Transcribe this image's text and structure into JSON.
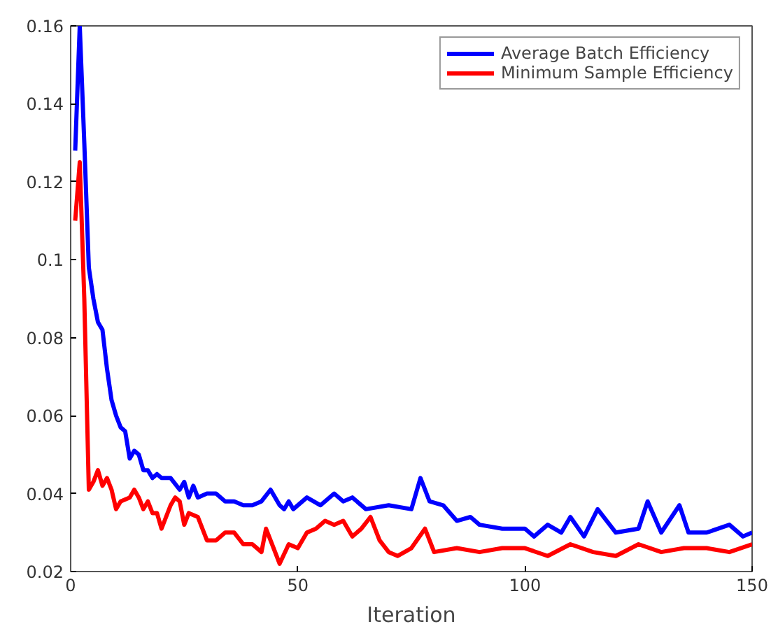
{
  "chart_data": {
    "type": "line",
    "xlabel": "Iteration",
    "xlim": [
      0,
      150
    ],
    "ylim": [
      0.02,
      0.16
    ],
    "xticks": [
      0,
      50,
      100,
      150
    ],
    "yticks": [
      0.02,
      0.04,
      0.06,
      0.08,
      {
        "value": 0.1,
        "label": "0.1"
      },
      0.12,
      0.14,
      0.16
    ],
    "grid": false,
    "legend": "top right",
    "marker": "none",
    "line_style": "solid",
    "series": [
      {
        "name": "Average Batch Efficiency",
        "color": "#0000ff",
        "x": [
          1,
          2,
          3,
          4,
          5,
          6,
          7,
          8,
          9,
          10,
          11,
          12,
          13,
          14,
          15,
          16,
          17,
          18,
          19,
          20,
          22,
          24,
          25,
          26,
          27,
          28,
          30,
          32,
          34,
          36,
          38,
          40,
          42,
          44,
          46,
          47,
          48,
          49,
          52,
          55,
          58,
          60,
          62,
          65,
          70,
          75,
          77,
          79,
          82,
          85,
          88,
          90,
          95,
          100,
          102,
          105,
          108,
          110,
          113,
          116,
          120,
          125,
          127,
          130,
          134,
          136,
          140,
          145,
          148,
          150
        ],
        "values": [
          0.128,
          0.16,
          0.13,
          0.098,
          0.09,
          0.084,
          0.082,
          0.072,
          0.064,
          0.06,
          0.057,
          0.056,
          0.049,
          0.051,
          0.05,
          0.046,
          0.046,
          0.044,
          0.045,
          0.044,
          0.044,
          0.041,
          0.043,
          0.039,
          0.042,
          0.039,
          0.04,
          0.04,
          0.038,
          0.038,
          0.037,
          0.037,
          0.038,
          0.041,
          0.037,
          0.036,
          0.038,
          0.036,
          0.039,
          0.037,
          0.04,
          0.038,
          0.039,
          0.036,
          0.037,
          0.036,
          0.044,
          0.038,
          0.037,
          0.033,
          0.034,
          0.032,
          0.031,
          0.031,
          0.029,
          0.032,
          0.03,
          0.034,
          0.029,
          0.036,
          0.03,
          0.031,
          0.038,
          0.03,
          0.037,
          0.03,
          0.03,
          0.032,
          0.029,
          0.03
        ]
      },
      {
        "name": "Minimum Sample Efficiency",
        "color": "#ff0000",
        "x": [
          1,
          2,
          3,
          4,
          5,
          6,
          7,
          8,
          9,
          10,
          11,
          13,
          14,
          15,
          16,
          17,
          18,
          19,
          20,
          22,
          23,
          24,
          25,
          26,
          28,
          30,
          32,
          34,
          36,
          38,
          40,
          42,
          43,
          45,
          46,
          48,
          50,
          52,
          54,
          56,
          58,
          60,
          62,
          64,
          66,
          68,
          70,
          72,
          75,
          78,
          80,
          85,
          90,
          95,
          100,
          105,
          110,
          115,
          120,
          125,
          130,
          135,
          140,
          145,
          150
        ],
        "values": [
          0.11,
          0.125,
          0.09,
          0.041,
          0.043,
          0.046,
          0.042,
          0.044,
          0.041,
          0.036,
          0.038,
          0.039,
          0.041,
          0.039,
          0.036,
          0.038,
          0.035,
          0.035,
          0.031,
          0.037,
          0.039,
          0.038,
          0.032,
          0.035,
          0.034,
          0.028,
          0.028,
          0.03,
          0.03,
          0.027,
          0.027,
          0.025,
          0.031,
          0.025,
          0.022,
          0.027,
          0.026,
          0.03,
          0.031,
          0.033,
          0.032,
          0.033,
          0.029,
          0.031,
          0.034,
          0.028,
          0.025,
          0.024,
          0.026,
          0.031,
          0.025,
          0.026,
          0.025,
          0.026,
          0.026,
          0.024,
          0.027,
          0.025,
          0.024,
          0.027,
          0.025,
          0.026,
          0.026,
          0.025,
          0.027
        ]
      }
    ]
  }
}
